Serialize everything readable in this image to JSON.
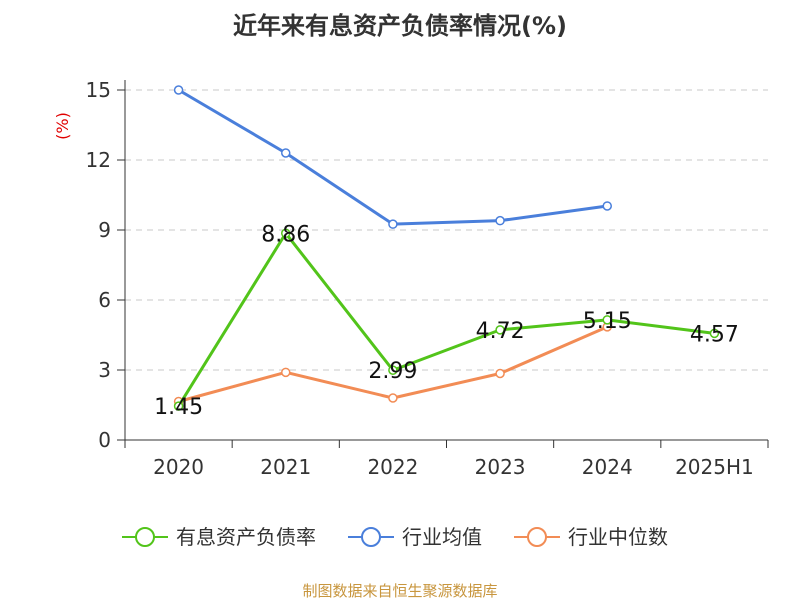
{
  "chart_data": {
    "type": "line",
    "title": "近年来有息资产负债率情况(%)",
    "ylabel": "(%)",
    "categories": [
      "2020",
      "2021",
      "2022",
      "2023",
      "2024",
      "2025H1"
    ],
    "ylim": [
      0,
      15
    ],
    "yticks": [
      "0",
      "3",
      "6",
      "9",
      "12",
      "15"
    ],
    "grid": true,
    "legend_position": "bottom",
    "series": [
      {
        "name": "有息资产负债率",
        "color": "#52c41a",
        "values": [
          1.45,
          8.86,
          2.99,
          4.72,
          5.15,
          4.57
        ],
        "labels": [
          "1.45",
          "8.86",
          "2.99",
          "4.72",
          "5.15",
          "4.57"
        ]
      },
      {
        "name": "行业均值",
        "color": "#4a7fdb",
        "values": [
          15.0,
          12.3,
          9.25,
          9.4,
          10.03,
          null
        ]
      },
      {
        "name": "行业中位数",
        "color": "#f28c55",
        "values": [
          1.65,
          2.9,
          1.8,
          2.85,
          4.85,
          null
        ]
      }
    ]
  },
  "footer": {
    "source": "制图数据来自恒生聚源数据库"
  }
}
